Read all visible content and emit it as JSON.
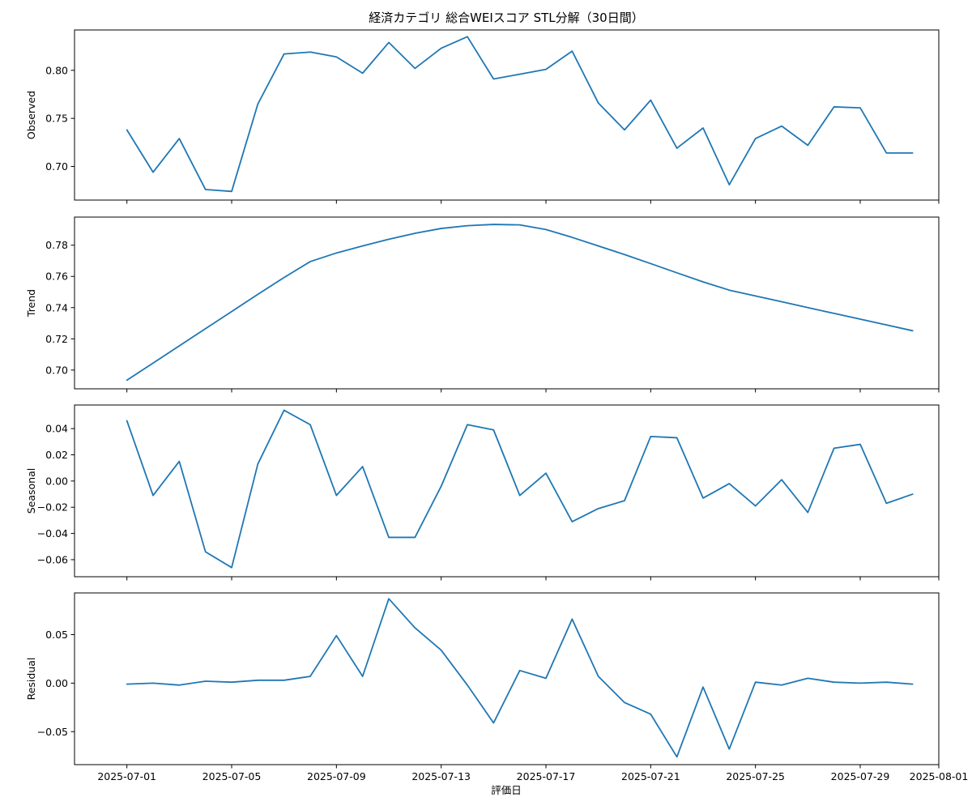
{
  "chart_data": {
    "type": "line",
    "title": "経済カテゴリ 総合WEIスコア STL分解（30日間）",
    "xlabel": "評価日",
    "line_color": "#1f77b4",
    "x_start": "2025-07-01",
    "x_range": [
      "2025-06-29",
      "2025-08-01"
    ],
    "x_ticks": [
      {
        "date": "2025-07-01",
        "label": "2025-07-01"
      },
      {
        "date": "2025-07-05",
        "label": "2025-07-05"
      },
      {
        "date": "2025-07-09",
        "label": "2025-07-09"
      },
      {
        "date": "2025-07-13",
        "label": "2025-07-13"
      },
      {
        "date": "2025-07-17",
        "label": "2025-07-17"
      },
      {
        "date": "2025-07-21",
        "label": "2025-07-21"
      },
      {
        "date": "2025-07-25",
        "label": "2025-07-25"
      },
      {
        "date": "2025-07-29",
        "label": "2025-07-29"
      },
      {
        "date": "2025-08-01",
        "label": "2025-08-01"
      }
    ],
    "panels": [
      {
        "name": "observed",
        "ylabel": "Observed",
        "ylim": [
          0.665,
          0.842
        ],
        "yticks": [
          0.7,
          0.75,
          0.8
        ],
        "ytick_labels": [
          "0.70",
          "0.75",
          "0.80"
        ],
        "values": [
          0.738,
          0.694,
          0.729,
          0.676,
          0.674,
          0.765,
          0.817,
          0.819,
          0.814,
          0.797,
          0.829,
          0.802,
          0.823,
          0.835,
          0.791,
          0.796,
          0.801,
          0.82,
          0.766,
          0.738,
          0.769,
          0.719,
          0.74,
          0.681,
          0.729,
          0.742,
          0.722,
          0.762,
          0.761,
          0.714,
          0.714
        ]
      },
      {
        "name": "trend",
        "ylabel": "Trend",
        "ylim": [
          0.688,
          0.798
        ],
        "yticks": [
          0.7,
          0.72,
          0.74,
          0.76,
          0.78
        ],
        "ytick_labels": [
          "0.70",
          "0.72",
          "0.74",
          "0.76",
          "0.78"
        ],
        "values": [
          0.6935,
          0.7045,
          0.7155,
          0.7265,
          0.7375,
          0.7485,
          0.7593,
          0.7695,
          0.775,
          0.7795,
          0.7838,
          0.7876,
          0.7907,
          0.7925,
          0.7933,
          0.793,
          0.79,
          0.785,
          0.7795,
          0.774,
          0.7682,
          0.7623,
          0.7565,
          0.7512,
          0.7475,
          0.7438,
          0.74,
          0.7363,
          0.7326,
          0.7289,
          0.7252
        ]
      },
      {
        "name": "seasonal",
        "ylabel": "Seasonal",
        "ylim": [
          -0.073,
          0.058
        ],
        "yticks": [
          -0.06,
          -0.04,
          -0.02,
          0.0,
          0.02,
          0.04
        ],
        "ytick_labels": [
          "−0.06",
          "−0.04",
          "−0.02",
          "0.00",
          "0.02",
          "0.04"
        ],
        "values": [
          0.046,
          -0.011,
          0.015,
          -0.054,
          -0.066,
          0.013,
          0.054,
          0.043,
          -0.011,
          0.011,
          -0.043,
          -0.043,
          -0.004,
          0.043,
          0.039,
          -0.011,
          0.006,
          -0.031,
          -0.021,
          -0.015,
          0.034,
          0.033,
          -0.013,
          -0.002,
          -0.019,
          0.001,
          -0.024,
          0.025,
          0.028,
          -0.017,
          -0.01
        ]
      },
      {
        "name": "residual",
        "ylabel": "Residual",
        "ylim": [
          -0.084,
          0.093
        ],
        "yticks": [
          -0.05,
          0.0,
          0.05
        ],
        "ytick_labels": [
          "−0.05",
          "0.00",
          "0.05"
        ],
        "values": [
          -0.001,
          0.0,
          -0.002,
          0.002,
          0.001,
          0.003,
          0.003,
          0.007,
          0.049,
          0.007,
          0.087,
          0.057,
          0.034,
          -0.002,
          -0.041,
          0.013,
          0.005,
          0.066,
          0.007,
          -0.02,
          -0.032,
          -0.076,
          -0.004,
          -0.068,
          0.001,
          -0.002,
          0.005,
          0.001,
          0.0,
          0.001,
          -0.001
        ]
      }
    ]
  }
}
